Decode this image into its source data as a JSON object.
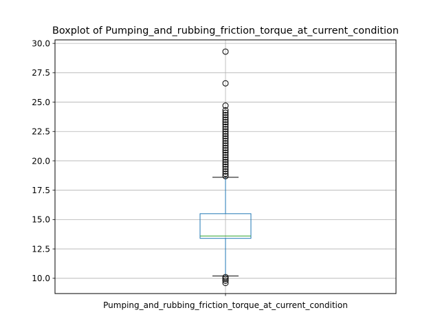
{
  "chart_data": {
    "type": "boxplot",
    "title": "Boxplot of Pumping_and_rubbing_friction_torque_at_current_condition",
    "categories": [
      "Pumping_and_rubbing_friction_torque_at_current_condition"
    ],
    "xlabel": "",
    "ylabel": "",
    "ylim": [
      8.7,
      30.3
    ],
    "yticks": [
      10.0,
      12.5,
      15.0,
      17.5,
      20.0,
      22.5,
      25.0,
      27.5,
      30.0
    ],
    "ytick_labels": [
      "10.0",
      "12.5",
      "15.0",
      "17.5",
      "20.0",
      "22.5",
      "25.0",
      "27.5",
      "30.0"
    ],
    "grid": true,
    "box": {
      "whisker_low": 10.2,
      "q1": 13.4,
      "median": 13.6,
      "q3": 15.5,
      "whisker_high": 18.6
    },
    "outliers": [
      29.3,
      26.6,
      24.7,
      24.3,
      24.1,
      23.9,
      23.7,
      23.5,
      23.3,
      23.1,
      22.9,
      22.7,
      22.5,
      22.3,
      22.1,
      21.9,
      21.7,
      21.5,
      21.3,
      21.1,
      20.9,
      20.7,
      20.5,
      20.3,
      20.1,
      19.9,
      19.7,
      19.5,
      19.3,
      19.1,
      18.9,
      18.7,
      10.1,
      9.95,
      9.8,
      9.6
    ],
    "colors": {
      "box": "#1f77b4",
      "median": "#2ca02c",
      "cap": "#000000",
      "grid": "#b0b0b0",
      "outlier_edge": "#000000"
    }
  }
}
